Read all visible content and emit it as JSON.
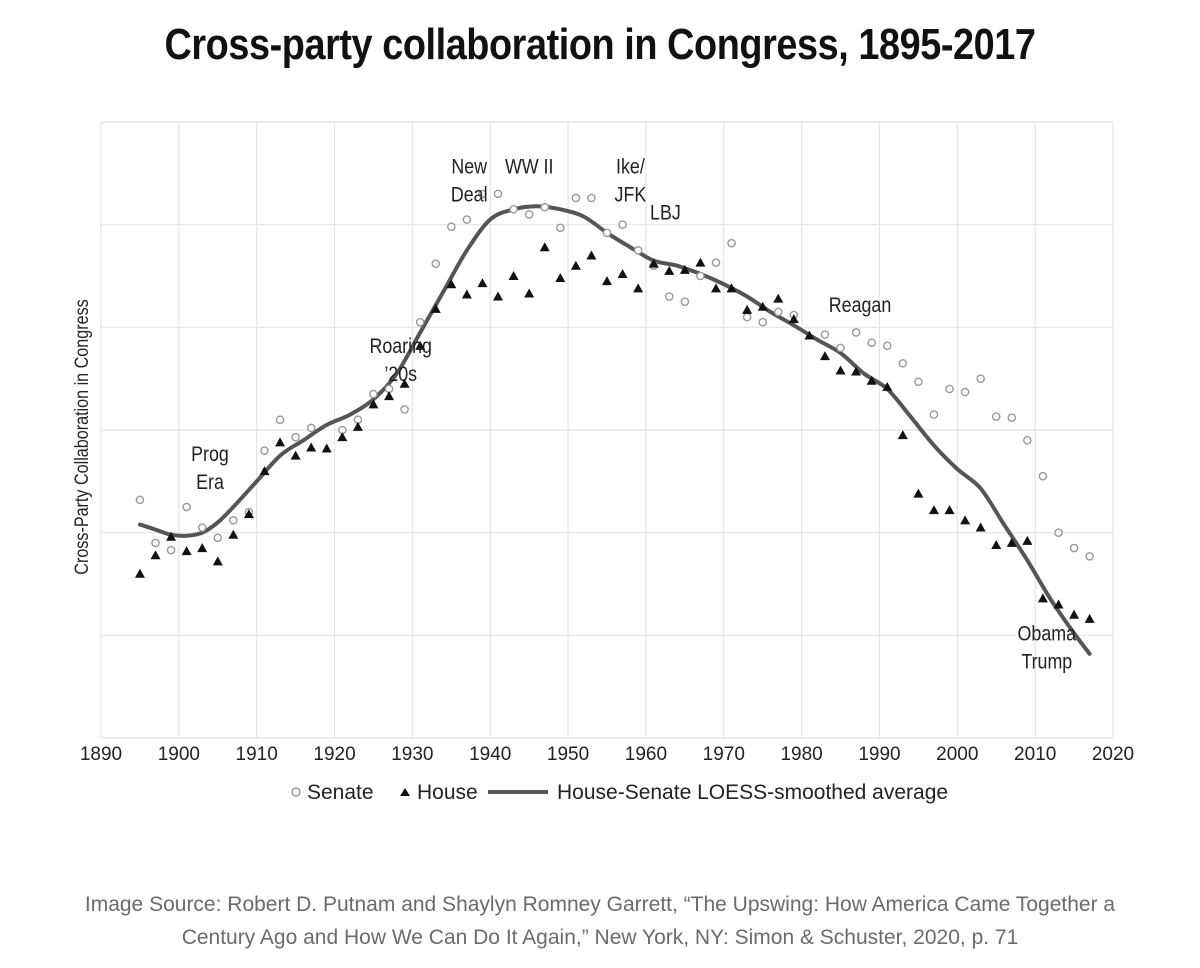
{
  "title": "Cross-party collaboration in Congress, 1895-2017",
  "caption": {
    "line1": "Image Source: Robert D. Putnam and Shaylyn Romney Garrett, “The Upswing: How America Came Together a",
    "line2": "Century Ago and How We Can Do It Again,” New York, NY: Simon & Schuster, 2020, p. 71"
  },
  "chart_data": {
    "type": "scatter",
    "title": "Cross-party collaboration in Congress, 1895-2017",
    "xlabel": "",
    "ylabel": "Cross-Party Collaboration in Congress",
    "xlim": [
      1890,
      2020
    ],
    "ylim": [
      0,
      6
    ],
    "x_ticks": [
      "1890",
      "1900",
      "1910",
      "1920",
      "1930",
      "1940",
      "1950",
      "1960",
      "1970",
      "1980",
      "1990",
      "2000",
      "2010",
      "2020"
    ],
    "grid": true,
    "legend_position": "bottom",
    "legend": {
      "senate": "Senate",
      "house": "House",
      "average": "House-Senate LOESS-smoothed average"
    },
    "colors": {
      "senate": "#999999",
      "house": "#111111",
      "average": "#555555",
      "grid": "#e4e4e4"
    },
    "series": [
      {
        "name": "Senate",
        "marker": "open-circle",
        "points": [
          [
            1895,
            2.32
          ],
          [
            1897,
            1.9
          ],
          [
            1899,
            1.83
          ],
          [
            1901,
            2.25
          ],
          [
            1903,
            2.05
          ],
          [
            1905,
            1.95
          ],
          [
            1907,
            2.12
          ],
          [
            1909,
            2.2
          ],
          [
            1911,
            2.8
          ],
          [
            1913,
            3.1
          ],
          [
            1915,
            2.93
          ],
          [
            1917,
            3.02
          ],
          [
            1921,
            3.0
          ],
          [
            1923,
            3.1
          ],
          [
            1925,
            3.35
          ],
          [
            1927,
            3.4
          ],
          [
            1929,
            3.2
          ],
          [
            1931,
            4.05
          ],
          [
            1933,
            4.62
          ],
          [
            1935,
            4.98
          ],
          [
            1937,
            5.05
          ],
          [
            1939,
            5.3
          ],
          [
            1941,
            5.3
          ],
          [
            1943,
            5.15
          ],
          [
            1945,
            5.1
          ],
          [
            1947,
            5.17
          ],
          [
            1949,
            4.97
          ],
          [
            1951,
            5.26
          ],
          [
            1953,
            5.26
          ],
          [
            1955,
            4.92
          ],
          [
            1957,
            5.0
          ],
          [
            1959,
            4.75
          ],
          [
            1961,
            4.6
          ],
          [
            1963,
            4.3
          ],
          [
            1965,
            4.25
          ],
          [
            1967,
            4.5
          ],
          [
            1969,
            4.63
          ],
          [
            1971,
            4.82
          ],
          [
            1973,
            4.1
          ],
          [
            1975,
            4.05
          ],
          [
            1977,
            4.15
          ],
          [
            1979,
            4.12
          ],
          [
            1983,
            3.93
          ],
          [
            1985,
            3.8
          ],
          [
            1987,
            3.95
          ],
          [
            1989,
            3.85
          ],
          [
            1991,
            3.82
          ],
          [
            1993,
            3.65
          ],
          [
            1995,
            3.47
          ],
          [
            1997,
            3.15
          ],
          [
            1999,
            3.4
          ],
          [
            2001,
            3.37
          ],
          [
            2003,
            3.5
          ],
          [
            2005,
            3.13
          ],
          [
            2007,
            3.12
          ],
          [
            2009,
            2.9
          ],
          [
            2011,
            2.55
          ],
          [
            2013,
            2.0
          ],
          [
            2015,
            1.85
          ],
          [
            2017,
            1.77
          ]
        ]
      },
      {
        "name": "House",
        "marker": "filled-triangle",
        "points": [
          [
            1895,
            1.6
          ],
          [
            1897,
            1.78
          ],
          [
            1899,
            1.96
          ],
          [
            1901,
            1.82
          ],
          [
            1903,
            1.85
          ],
          [
            1905,
            1.72
          ],
          [
            1907,
            1.98
          ],
          [
            1909,
            2.18
          ],
          [
            1911,
            2.6
          ],
          [
            1913,
            2.88
          ],
          [
            1915,
            2.75
          ],
          [
            1917,
            2.83
          ],
          [
            1919,
            2.82
          ],
          [
            1921,
            2.93
          ],
          [
            1923,
            3.03
          ],
          [
            1925,
            3.25
          ],
          [
            1927,
            3.33
          ],
          [
            1929,
            3.45
          ],
          [
            1931,
            3.82
          ],
          [
            1933,
            4.18
          ],
          [
            1935,
            4.42
          ],
          [
            1937,
            4.32
          ],
          [
            1939,
            4.43
          ],
          [
            1941,
            4.3
          ],
          [
            1943,
            4.5
          ],
          [
            1945,
            4.33
          ],
          [
            1947,
            4.78
          ],
          [
            1949,
            4.48
          ],
          [
            1951,
            4.6
          ],
          [
            1953,
            4.7
          ],
          [
            1955,
            4.45
          ],
          [
            1957,
            4.52
          ],
          [
            1959,
            4.38
          ],
          [
            1961,
            4.62
          ],
          [
            1963,
            4.55
          ],
          [
            1965,
            4.56
          ],
          [
            1967,
            4.63
          ],
          [
            1969,
            4.38
          ],
          [
            1971,
            4.38
          ],
          [
            1973,
            4.17
          ],
          [
            1975,
            4.2
          ],
          [
            1977,
            4.28
          ],
          [
            1979,
            4.08
          ],
          [
            1981,
            3.92
          ],
          [
            1983,
            3.72
          ],
          [
            1985,
            3.58
          ],
          [
            1987,
            3.57
          ],
          [
            1989,
            3.48
          ],
          [
            1991,
            3.42
          ],
          [
            1993,
            2.95
          ],
          [
            1995,
            2.38
          ],
          [
            1997,
            2.22
          ],
          [
            1999,
            2.22
          ],
          [
            2001,
            2.12
          ],
          [
            2003,
            2.05
          ],
          [
            2005,
            1.88
          ],
          [
            2007,
            1.9
          ],
          [
            2009,
            1.92
          ],
          [
            2011,
            1.36
          ],
          [
            2013,
            1.3
          ],
          [
            2015,
            1.2
          ],
          [
            2017,
            1.16
          ]
        ]
      },
      {
        "name": "House-Senate LOESS-smoothed average",
        "marker": "line",
        "points": [
          [
            1895,
            2.08
          ],
          [
            1897,
            2.03
          ],
          [
            1899,
            1.98
          ],
          [
            1901,
            1.97
          ],
          [
            1903,
            2.0
          ],
          [
            1905,
            2.1
          ],
          [
            1907,
            2.25
          ],
          [
            1910,
            2.5
          ],
          [
            1913,
            2.75
          ],
          [
            1916,
            2.9
          ],
          [
            1919,
            3.05
          ],
          [
            1922,
            3.15
          ],
          [
            1925,
            3.3
          ],
          [
            1928,
            3.55
          ],
          [
            1931,
            3.95
          ],
          [
            1934,
            4.35
          ],
          [
            1937,
            4.75
          ],
          [
            1940,
            5.05
          ],
          [
            1943,
            5.15
          ],
          [
            1946,
            5.18
          ],
          [
            1949,
            5.15
          ],
          [
            1952,
            5.08
          ],
          [
            1955,
            4.92
          ],
          [
            1958,
            4.78
          ],
          [
            1961,
            4.65
          ],
          [
            1964,
            4.6
          ],
          [
            1967,
            4.52
          ],
          [
            1970,
            4.42
          ],
          [
            1973,
            4.3
          ],
          [
            1976,
            4.15
          ],
          [
            1979,
            4.02
          ],
          [
            1982,
            3.88
          ],
          [
            1985,
            3.75
          ],
          [
            1988,
            3.55
          ],
          [
            1991,
            3.4
          ],
          [
            1994,
            3.13
          ],
          [
            1997,
            2.85
          ],
          [
            2000,
            2.62
          ],
          [
            2003,
            2.43
          ],
          [
            2006,
            2.08
          ],
          [
            2009,
            1.73
          ],
          [
            2012,
            1.35
          ],
          [
            2015,
            1.02
          ],
          [
            2017,
            0.82
          ]
        ]
      }
    ],
    "annotations": [
      {
        "lines": [
          "Prog",
          "Era"
        ],
        "x": 1904,
        "y": 2.7
      },
      {
        "lines": [
          "Roaring",
          "’20s"
        ],
        "x": 1928.5,
        "y": 3.75
      },
      {
        "lines": [
          "New",
          "Deal"
        ],
        "x": 1937.3,
        "y": 5.5
      },
      {
        "lines": [
          "WW II"
        ],
        "x": 1945,
        "y": 5.5
      },
      {
        "lines": [
          "Ike/",
          "JFK"
        ],
        "x": 1958,
        "y": 5.5
      },
      {
        "lines": [
          "LBJ"
        ],
        "x": 1962.5,
        "y": 5.05
      },
      {
        "lines": [
          "Reagan"
        ],
        "x": 1987.5,
        "y": 4.15
      },
      {
        "lines": [
          "Obama",
          "Trump"
        ],
        "x": 2011.5,
        "y": 0.95
      }
    ]
  }
}
